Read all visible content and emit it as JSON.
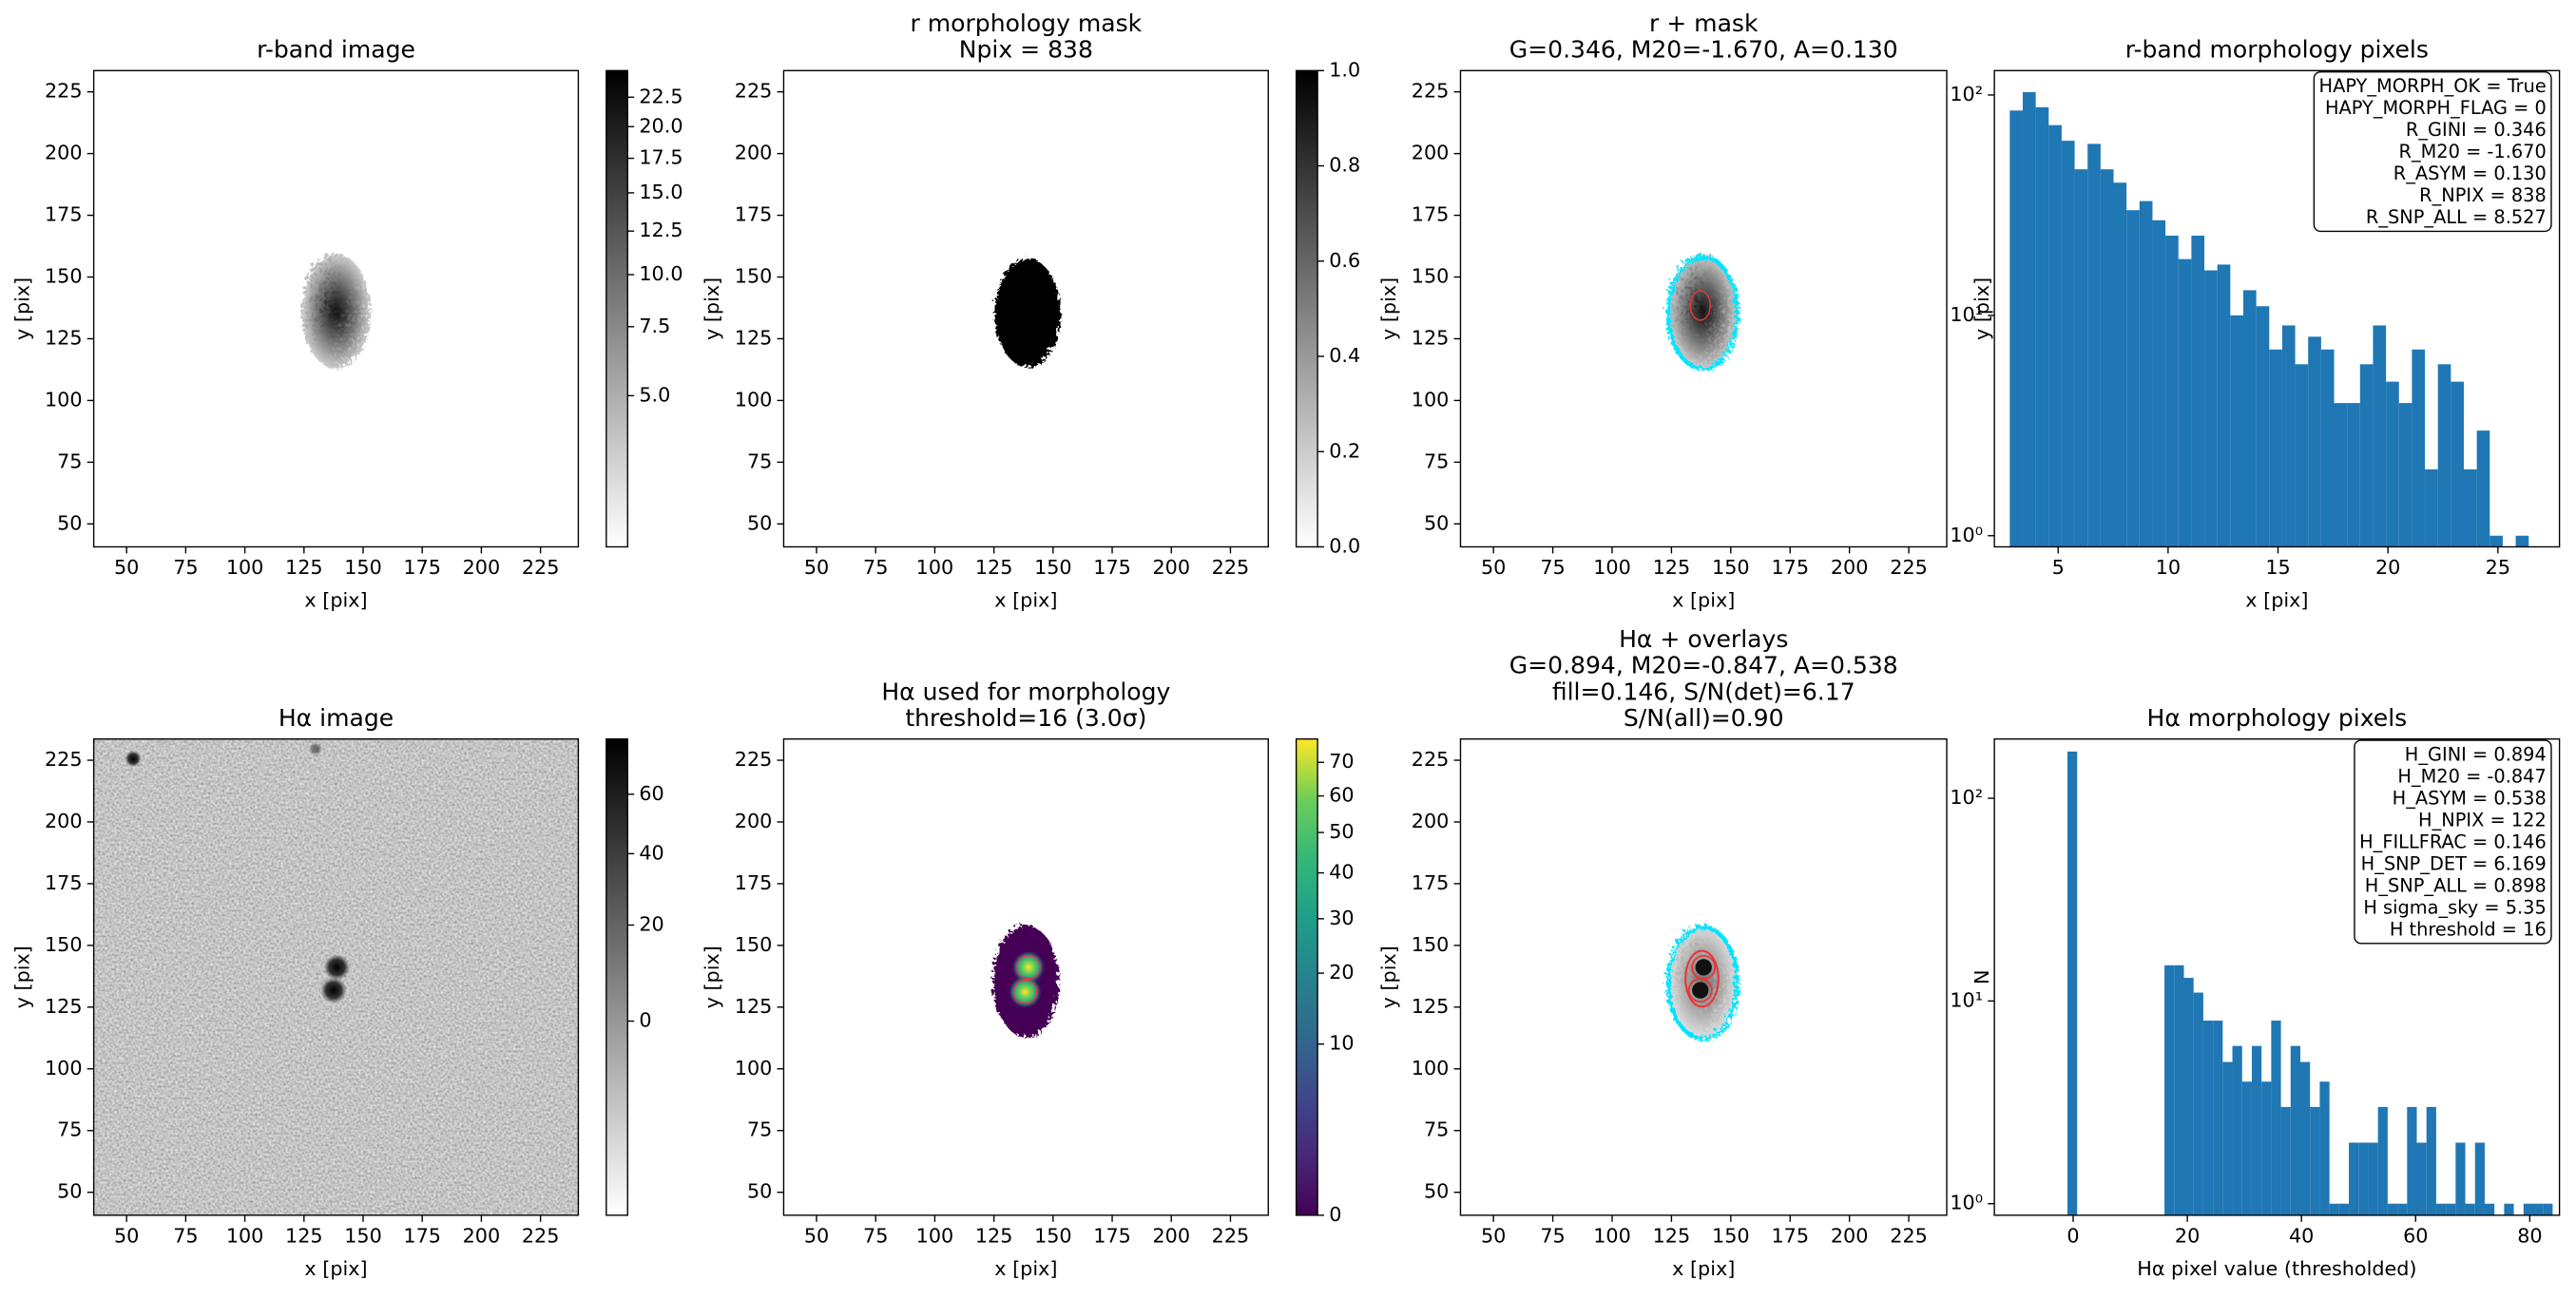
{
  "chart_data": [
    {
      "type": "image",
      "title": [
        "r-band image"
      ],
      "xlabel": "x [pix]",
      "ylabel": "y [pix]",
      "xlim": [
        36.1,
        241
      ],
      "ylim": [
        40.7,
        233.6
      ],
      "xticks": [
        50,
        75,
        100,
        125,
        150,
        175,
        200,
        225
      ],
      "yticks": [
        50,
        75,
        100,
        125,
        150,
        175,
        200,
        225
      ],
      "colorbar": {
        "cmap": "gray_r",
        "stretch": "sqrt",
        "lim": [
          2.77,
          24.9
        ],
        "ticks": [
          {
            "value": 5,
            "label": "5.0"
          },
          {
            "value": 7.5,
            "label": "7.5"
          },
          {
            "value": 10,
            "label": "10.0"
          },
          {
            "value": 12.5,
            "label": "12.5"
          },
          {
            "value": 15,
            "label": "15.0"
          },
          {
            "value": 17.5,
            "label": "17.5"
          },
          {
            "value": 20,
            "label": "20.0"
          },
          {
            "value": 22.5,
            "label": "22.5"
          }
        ]
      }
    },
    {
      "type": "image",
      "title": [
        "r morphology mask",
        "Npix = 838"
      ],
      "xlabel": "x [pix]",
      "ylabel": "y [pix]",
      "xlim": [
        36.1,
        241
      ],
      "ylim": [
        40.7,
        233.6
      ],
      "xticks": [
        50,
        75,
        100,
        125,
        150,
        175,
        200,
        225
      ],
      "yticks": [
        50,
        75,
        100,
        125,
        150,
        175,
        200,
        225
      ],
      "colorbar": {
        "cmap": "gray_r",
        "stretch": "linear",
        "lim": [
          0,
          1
        ],
        "ticks": [
          {
            "value": 0,
            "label": "0.0"
          },
          {
            "value": 0.2,
            "label": "0.2"
          },
          {
            "value": 0.4,
            "label": "0.4"
          },
          {
            "value": 0.6,
            "label": "0.6"
          },
          {
            "value": 0.8,
            "label": "0.8"
          },
          {
            "value": 1,
            "label": "1.0"
          }
        ]
      }
    },
    {
      "type": "image",
      "title": [
        "r + mask",
        "G=0.346, M20=-1.670, A=0.130"
      ],
      "xlabel": "x [pix]",
      "ylabel": "y [pix]",
      "xlim": [
        36.1,
        241
      ],
      "ylim": [
        40.7,
        233.6
      ],
      "xticks": [
        50,
        75,
        100,
        125,
        150,
        175,
        200,
        225
      ],
      "yticks": [
        50,
        75,
        100,
        125,
        150,
        175,
        200,
        225
      ]
    },
    {
      "type": "histogram",
      "title": [
        "r-band morphology pixels"
      ],
      "xlabel": "x [pix]",
      "ylabel": "y [pix]",
      "color": "#1f77b4",
      "ylog": true,
      "xlim": [
        2.1,
        27.8
      ],
      "ylim": [
        0.89,
        129
      ],
      "xticks": [
        5,
        10,
        15,
        20,
        25
      ],
      "yticks": [
        {
          "value": 1,
          "label": "10⁰"
        },
        {
          "value": 10,
          "label": "10¹"
        },
        {
          "value": 100,
          "label": "10²"
        }
      ],
      "bins": [
        2.8,
        3.39,
        3.98,
        4.57,
        5.16,
        5.75,
        6.34,
        6.93,
        7.52,
        8.11,
        8.7,
        9.29,
        9.88,
        10.47,
        11.06,
        11.65,
        12.24,
        12.83,
        13.42,
        14.01,
        14.6,
        15.19,
        15.78,
        16.37,
        16.96,
        17.55,
        18.14,
        18.73,
        19.32,
        19.91,
        20.5,
        21.09,
        21.68,
        22.27,
        22.86,
        23.45,
        24.04,
        24.63,
        25.22,
        25.81,
        26.4
      ],
      "values": [
        85,
        103,
        88,
        73,
        62,
        46,
        60,
        46,
        40,
        30,
        33,
        27,
        23,
        18,
        23,
        16,
        17,
        10,
        13,
        11,
        7,
        9,
        6,
        8,
        7,
        4,
        4,
        6,
        9,
        5,
        4,
        7,
        2,
        6,
        5,
        2,
        3,
        1,
        0,
        1
      ],
      "annotation": [
        "HAPY_MORPH_OK = True",
        "HAPY_MORPH_FLAG = 0",
        "R_GINI = 0.346",
        "R_M20 = -1.670",
        "R_ASYM = 0.130",
        "R_NPIX = 838",
        "R_SNP_ALL = 8.527"
      ]
    },
    {
      "type": "image",
      "title": [
        "Hα image"
      ],
      "xlabel": "x [pix]",
      "ylabel": "y [pix]",
      "xlim": [
        36.1,
        241
      ],
      "ylim": [
        40.7,
        233.6
      ],
      "xticks": [
        50,
        75,
        100,
        125,
        150,
        175,
        200,
        225
      ],
      "yticks": [
        50,
        75,
        100,
        125,
        150,
        175,
        200,
        225
      ],
      "colorbar": {
        "cmap": "gray_r",
        "stretch": "sqrt",
        "lim": [
          -16.2,
          81.3
        ],
        "ticks": [
          0,
          20,
          40,
          60
        ]
      }
    },
    {
      "type": "image",
      "title": [
        "Hα used for morphology",
        "threshold=16 (3.0σ)"
      ],
      "xlabel": "x [pix]",
      "ylabel": "y [pix]",
      "xlim": [
        36.1,
        241
      ],
      "ylim": [
        40.7,
        233.6
      ],
      "xticks": [
        50,
        75,
        100,
        125,
        150,
        175,
        200,
        225
      ],
      "yticks": [
        50,
        75,
        100,
        125,
        150,
        175,
        200,
        225
      ],
      "colorbar": {
        "cmap": "viridis",
        "stretch": "sqrt",
        "lim": [
          0,
          77.4
        ],
        "ticks": [
          0,
          10,
          20,
          30,
          40,
          50,
          60,
          70
        ]
      }
    },
    {
      "type": "image",
      "title": [
        "Hα + overlays",
        "G=0.894, M20=-0.847, A=0.538",
        "fill=0.146, S/N(det)=6.17",
        "S/N(all)=0.90"
      ],
      "xlabel": "x [pix]",
      "ylabel": "y [pix]",
      "xlim": [
        36.1,
        241
      ],
      "ylim": [
        40.7,
        233.6
      ],
      "xticks": [
        50,
        75,
        100,
        125,
        150,
        175,
        200,
        225
      ],
      "yticks": [
        50,
        75,
        100,
        125,
        150,
        175,
        200,
        225
      ]
    },
    {
      "type": "histogram",
      "title": [
        "Hα morphology pixels"
      ],
      "xlabel": "Hα pixel value (thresholded)",
      "ylabel": "N",
      "color": "#1f77b4",
      "ylog": true,
      "xlim": [
        -13.8,
        85.2
      ],
      "ylim": [
        0.877,
        196
      ],
      "xticks": [
        0,
        20,
        40,
        60,
        80
      ],
      "yticks": [
        {
          "value": 1,
          "label": "10⁰"
        },
        {
          "value": 10,
          "label": "10¹"
        },
        {
          "value": 100,
          "label": "10²"
        }
      ],
      "bins": [
        -1,
        0.7,
        2.4,
        4.1,
        5.8,
        7.5,
        9.2,
        10.9,
        12.6,
        14.3,
        16,
        17.7,
        19.4,
        21.1,
        22.8,
        24.5,
        26.2,
        27.9,
        29.6,
        31.3,
        33,
        34.7,
        36.4,
        38.1,
        39.8,
        41.5,
        43.2,
        44.9,
        46.6,
        48.3,
        50,
        51.7,
        53.4,
        55.1,
        56.8,
        58.5,
        60.2,
        61.9,
        63.6,
        65.3,
        67,
        68.7,
        70.4,
        72.1,
        73.8,
        75.5,
        77.2,
        78.9,
        80.6,
        82.3,
        84
      ],
      "values": [
        170,
        0,
        0,
        0,
        0,
        0,
        0,
        0,
        0,
        0,
        15,
        15,
        13,
        11,
        8,
        8,
        5,
        6,
        4,
        6,
        4,
        8,
        3,
        6,
        5,
        3,
        4,
        1,
        1,
        2,
        2,
        2,
        3,
        1,
        1,
        3,
        2,
        3,
        1,
        1,
        2,
        1,
        2,
        1,
        0,
        1,
        0,
        1,
        1,
        1
      ],
      "annotation": [
        "H_GINI = 0.894",
        "H_M20 = -0.847",
        "H_ASYM = 0.538",
        "H_NPIX = 122",
        "H_FILLFRAC = 0.146",
        "H_SNP_DET = 6.169",
        "H_SNP_ALL = 0.898",
        "H sigma_sky = 5.35",
        "H threshold = 16"
      ]
    }
  ]
}
